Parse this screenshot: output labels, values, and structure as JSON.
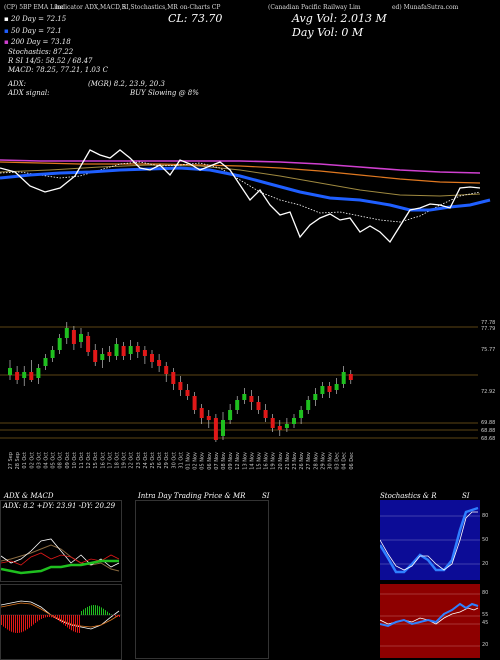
{
  "header": {
    "line1_left": "(CP) 5BP EMA Line",
    "line1_a": "Indicator ADX,MACD,R",
    "line1_b": "SI,Stochastics,MR",
    "line1_c": "on-Charts CP",
    "line1_d": "(Canadian Pacific Railway Lim",
    "line1_e": "ed) MunafaSutra.com",
    "cl_label": "CL: 73.70",
    "avg_vol": "Avg Vol: 2.013 M",
    "day_vol": "Day Vol: 0  M"
  },
  "legend": {
    "dma20": "20  Day = 72.15",
    "dma50": "50  Day = 72.1",
    "dma200": "200  Day = 73.18",
    "stoch": "Stochastics: 87.22",
    "rsi": "R            SI 14/5: 58.52 / 68.47",
    "macd": "MACD: 78.25, 77.21, 1.03 C"
  },
  "adx": {
    "line1_label": "ADX:",
    "line1_val": "(MGR) 8.2, 23.9, 20.3",
    "line2_label": "ADX  signal:",
    "line2_val": "BUY Slowing @ 8%"
  },
  "price_axis": [
    "77.78",
    "77.79",
    "75.77",
    "72.92",
    "69.88",
    "68.88",
    "68.68"
  ],
  "dates": [
    "27 Sep",
    "28 Sep",
    "01 Oct",
    "02 Oct",
    "03 Oct",
    "04 Oct",
    "05 Oct",
    "08 Oct",
    "09 Oct",
    "10 Oct",
    "11 Oct",
    "12 Oct",
    "15 Oct",
    "16 Oct",
    "17 Oct",
    "18 Oct",
    "19 Oct",
    "22 Oct",
    "23 Oct",
    "24 Oct",
    "25 Oct",
    "26 Oct",
    "29 Oct",
    "30 Oct",
    "31 Oct",
    "01 Nov",
    "02 Nov",
    "05 Nov",
    "06 Nov",
    "07 Nov",
    "08 Nov",
    "09 Nov",
    "12 Nov",
    "13 Nov",
    "14 Nov",
    "15 Nov",
    "16 Nov",
    "19 Nov",
    "20 Nov",
    "21 Nov",
    "23 Nov",
    "26 Nov",
    "27 Nov",
    "28 Nov",
    "29 Nov",
    "30 Nov",
    "03 Dec",
    "04 Dec",
    "06 Dec"
  ],
  "panels": {
    "adx_title": "ADX  & MACD",
    "adx_values": "ADX: 8.2  +DY: 23.91  -DY: 20.29",
    "intraday_title": "Intra  Day Trading Price  & MR",
    "intraday_si": "SI",
    "stoch_title": "Stochastics & R",
    "stoch_si": "SI",
    "stoch_ticks": [
      "80",
      "50",
      "20"
    ],
    "rsi_ticks": [
      "80",
      "55",
      "45",
      "20"
    ]
  },
  "colors": {
    "up": "#1fbf1f",
    "down": "#e01818",
    "stoch_bg": "#0c0c96",
    "rsi_bg": "#8e0000",
    "blue_line": "#1f5fff",
    "magenta": "#d040d0",
    "orange": "#e07820",
    "olive": "#a08a40"
  }
}
